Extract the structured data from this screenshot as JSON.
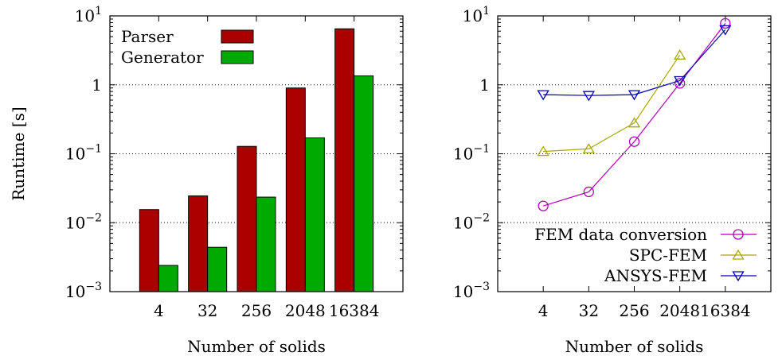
{
  "chart_data": [
    {
      "type": "bar",
      "categories": [
        "4",
        "32",
        "256",
        "2048",
        "16384"
      ],
      "series": [
        {
          "name": "Parser",
          "values": [
            0.0155,
            0.0245,
            0.128,
            0.9,
            6.5
          ],
          "color": "#aa0000"
        },
        {
          "name": "Generator",
          "values": [
            0.0024,
            0.0044,
            0.0235,
            0.17,
            1.35
          ],
          "color": "#00aa00"
        }
      ],
      "xlabel": "Number of solids",
      "ylabel": "Runtime [s]",
      "yscale": "log",
      "ylim": [
        0.001,
        10
      ],
      "yticks": [
        {
          "base": "10",
          "exp": "1"
        },
        {
          "base": "1",
          "exp": ""
        },
        {
          "base": "10",
          "exp": "−1"
        },
        {
          "base": "10",
          "exp": "−2"
        },
        {
          "base": "10",
          "exp": "−3"
        }
      ],
      "grid": "horizontal dotted",
      "legend": "top-left"
    },
    {
      "type": "line",
      "categories": [
        "4",
        "32",
        "256",
        "2048",
        "16384"
      ],
      "series": [
        {
          "name": "FEM data conversion",
          "values": [
            0.0175,
            0.028,
            0.15,
            1.05,
            7.8
          ],
          "color": "#b000b0",
          "marker": "circle"
        },
        {
          "name": "SPC-FEM",
          "values": [
            0.108,
            0.118,
            0.28,
            2.7,
            null
          ],
          "color": "#a8a800",
          "marker": "triangle-up"
        },
        {
          "name": "ANSYS-FEM",
          "values": [
            0.72,
            0.7,
            0.72,
            1.15,
            6.3
          ],
          "color": "#0000b0",
          "marker": "triangle-down"
        }
      ],
      "xlabel": "Number of solids",
      "yscale": "log",
      "ylim": [
        0.001,
        10
      ],
      "yticks": [
        {
          "base": "10",
          "exp": "1"
        },
        {
          "base": "1",
          "exp": ""
        },
        {
          "base": "10",
          "exp": "−1"
        },
        {
          "base": "10",
          "exp": "−2"
        },
        {
          "base": "10",
          "exp": "−3"
        }
      ],
      "grid": "horizontal dotted",
      "legend": "bottom-right"
    }
  ]
}
